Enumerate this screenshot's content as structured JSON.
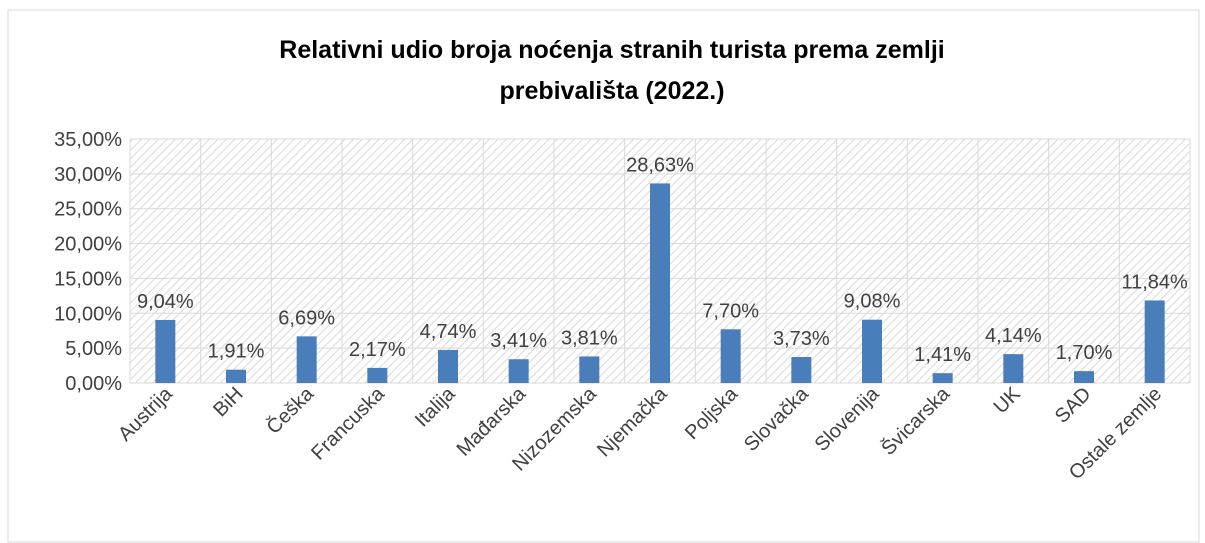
{
  "chart_data": {
    "type": "bar",
    "title": [
      "Relativni udio broja noćenja stranih turista prema zemlji",
      "prebivališta (2022.)"
    ],
    "categories": [
      "Austrija",
      "BiH",
      "Češka",
      "Francuska",
      "Italija",
      "Mađarska",
      "Nizozemska",
      "Njemačka",
      "Poljska",
      "Slovačka",
      "Slovenija",
      "Švicarska",
      "UK",
      "SAD",
      "Ostale zemlje"
    ],
    "values": [
      9.04,
      1.91,
      6.69,
      2.17,
      4.74,
      3.41,
      3.81,
      28.63,
      7.7,
      3.73,
      9.08,
      1.41,
      4.14,
      1.7,
      11.84
    ],
    "value_labels": [
      "9,04%",
      "1,91%",
      "6,69%",
      "2,17%",
      "4,74%",
      "3,41%",
      "3,81%",
      "28,63%",
      "7,70%",
      "3,73%",
      "9,08%",
      "1,41%",
      "4,14%",
      "1,70%",
      "11,84%"
    ],
    "color": "#4a7ebb",
    "ylim": [
      0,
      35
    ],
    "yticks": [
      {
        "value": 0,
        "label": "0,00%"
      },
      {
        "value": 5,
        "label": "5,00%"
      },
      {
        "value": 10,
        "label": "10,00%"
      },
      {
        "value": 15,
        "label": "15,00%"
      },
      {
        "value": 20,
        "label": "20,00%"
      },
      {
        "value": 25,
        "label": "25,00%"
      },
      {
        "value": 30,
        "label": "30,00%"
      },
      {
        "value": 35,
        "label": "35,00%"
      }
    ],
    "grid": true
  }
}
